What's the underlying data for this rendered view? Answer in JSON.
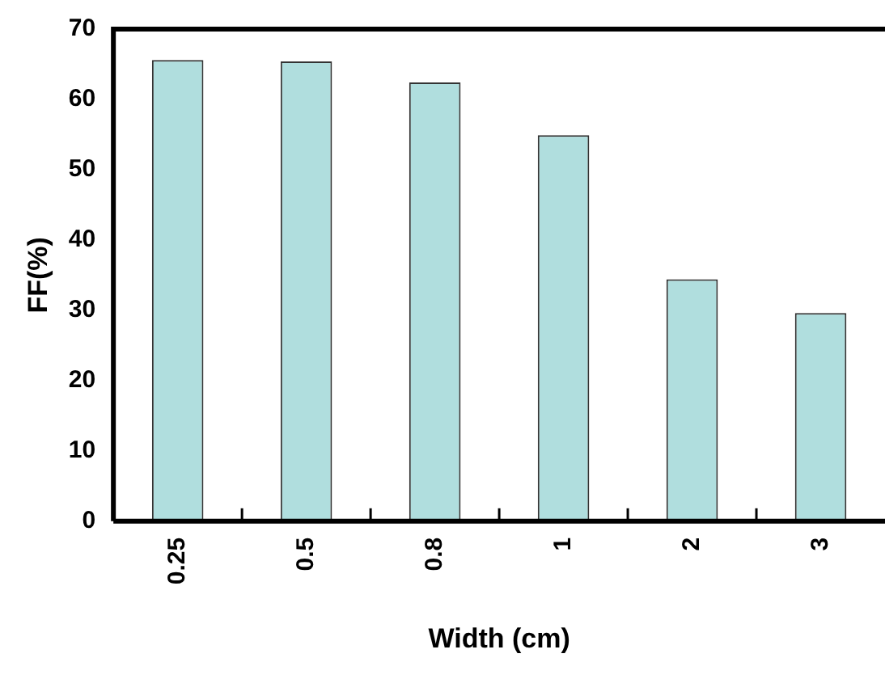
{
  "chart_data": {
    "type": "bar",
    "xlabel": "Width (cm)",
    "ylabel": "FF(%)",
    "categories": [
      "0.25",
      "0.5",
      "0.8",
      "1",
      "2",
      "3"
    ],
    "values": [
      65.6,
      65.4,
      62.4,
      54.9,
      34.4,
      29.6
    ],
    "color": "#b0dede",
    "ylim": [
      0,
      70
    ],
    "yticks": [
      0,
      10,
      20,
      30,
      40,
      50,
      60,
      70
    ],
    "grid": false,
    "legend": false
  }
}
